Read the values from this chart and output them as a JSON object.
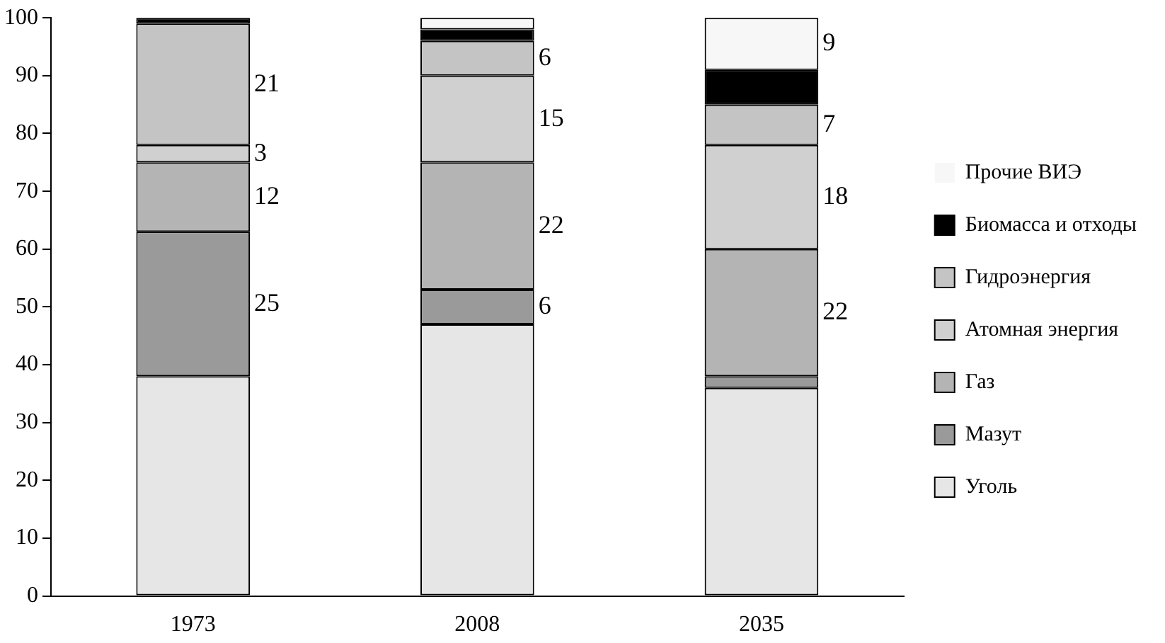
{
  "chart_data": {
    "type": "bar",
    "stacked": true,
    "categories": [
      "1973",
      "2008",
      "2035"
    ],
    "series": [
      {
        "name": "Уголь",
        "color": "#e6e6e6",
        "values": [
          38,
          47,
          36
        ],
        "value_labels": [
          null,
          null,
          null
        ]
      },
      {
        "name": "Мазут",
        "color": "#9a9a9a",
        "values": [
          25,
          6,
          2
        ],
        "value_labels": [
          "25",
          "6",
          null
        ]
      },
      {
        "name": "Газ",
        "color": "#b4b4b4",
        "values": [
          12,
          22,
          22
        ],
        "value_labels": [
          "12",
          "22",
          "22"
        ]
      },
      {
        "name": "Атомная энергия",
        "color": "#d0d0d0",
        "values": [
          3,
          15,
          18
        ],
        "value_labels": [
          "3",
          "15",
          "18"
        ]
      },
      {
        "name": "Гидроэнергия",
        "color": "#c4c4c4",
        "values": [
          21,
          6,
          7
        ],
        "value_labels": [
          "21",
          "6",
          "7"
        ]
      },
      {
        "name": "Биомасса и отходы",
        "color": "#000000",
        "values": [
          1,
          2,
          6
        ],
        "value_labels": [
          null,
          null,
          null
        ]
      },
      {
        "name": "Прочие ВИЭ",
        "color": "#f7f7f7",
        "values": [
          0,
          2,
          9
        ],
        "value_labels": [
          null,
          null,
          "9"
        ]
      }
    ],
    "ylim": [
      0,
      100
    ],
    "yticks": [
      0,
      10,
      20,
      30,
      40,
      50,
      60,
      70,
      80,
      90,
      100
    ],
    "grid": false,
    "legend": "right"
  }
}
